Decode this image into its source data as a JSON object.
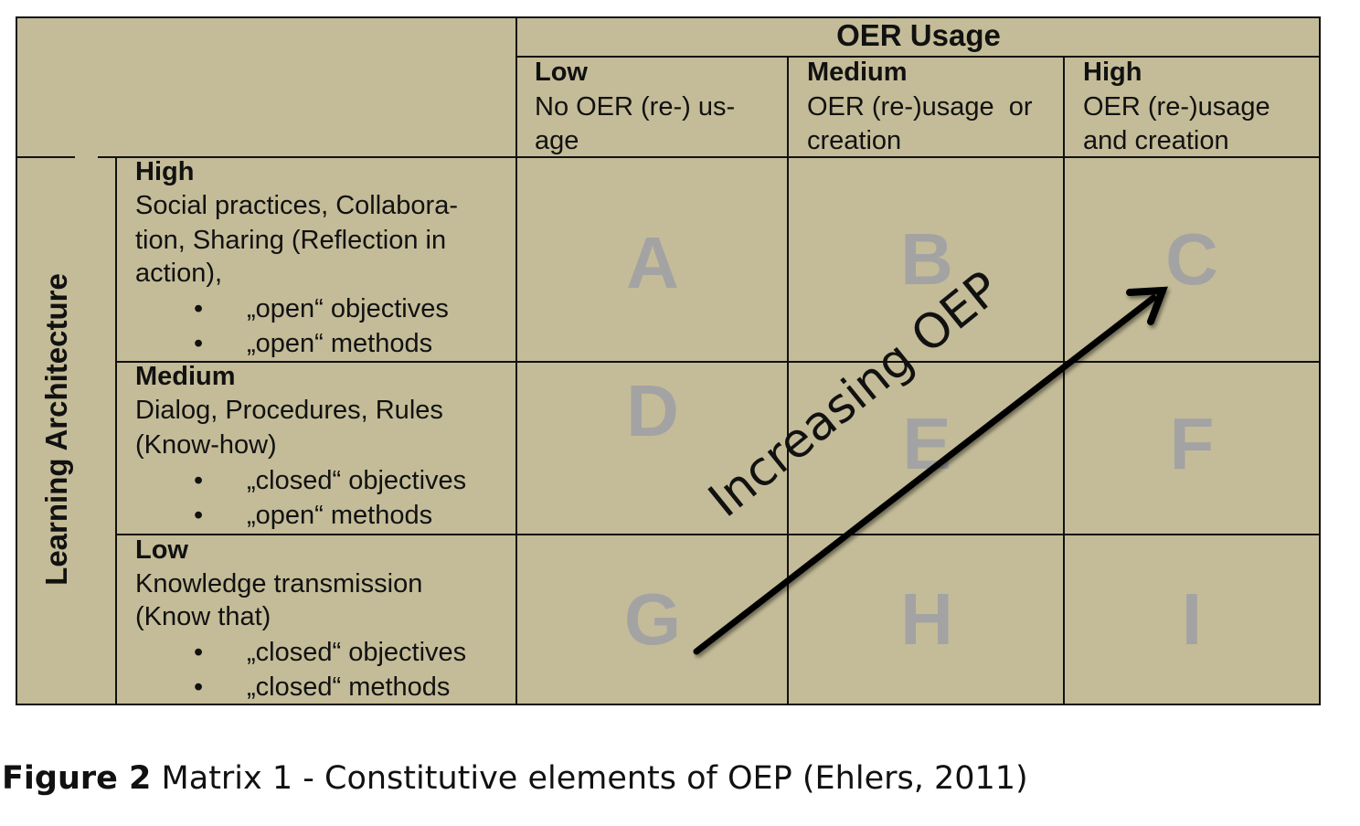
{
  "header": {
    "title": "OER Usage"
  },
  "columns": [
    {
      "level": "Low",
      "desc": [
        "No OER (re-) us-",
        "age"
      ]
    },
    {
      "level": "Medium",
      "desc": [
        "OER (re-)usage  or",
        "creation"
      ]
    },
    {
      "level": "High",
      "desc": [
        "OER (re-)usage",
        "and creation"
      ]
    }
  ],
  "row_axis_label": "Learning Architecture",
  "rows": [
    {
      "level": "High",
      "desc": [
        "Social practices, Collabora-",
        "tion, Sharing (Reflection in",
        "action),"
      ],
      "bullets": [
        "„open“ objectives",
        "„open“ methods"
      ]
    },
    {
      "level": "Medium",
      "desc": [
        "Dialog, Procedures, Rules",
        "(Know-how)"
      ],
      "bullets": [
        "„closed“ objectives",
        "„open“ methods"
      ]
    },
    {
      "level": "Low",
      "desc": [
        "Knowledge transmission",
        "(Know that)"
      ],
      "bullets": [
        "„closed“ objectives",
        "„closed“ methods"
      ]
    }
  ],
  "cells": [
    "A",
    "B",
    "C",
    "D",
    "E",
    "F",
    "G",
    "H",
    "I"
  ],
  "arrow_label": "Increasing OEP",
  "bullet_glyph": "•",
  "caption": {
    "bold": "Figure 2",
    "text": " Matrix 1 - Constitutive elements of OEP (Ehlers, 2011)"
  },
  "colors": {
    "background": "#c4bc98",
    "cell_letters": "#a3a3a3",
    "lines": "#111111"
  }
}
